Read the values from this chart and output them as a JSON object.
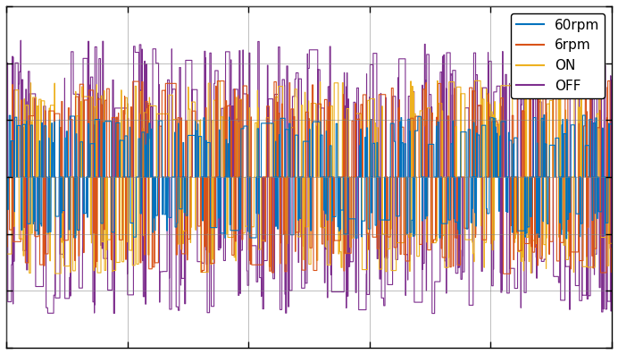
{
  "legend_labels": [
    "60rpm",
    "6rpm",
    "ON",
    "OFF"
  ],
  "colors": [
    "#0072BD",
    "#D95319",
    "#EDB120",
    "#7E2F8E"
  ],
  "n_samples": 10000,
  "ylim": [
    -1.5,
    1.5
  ],
  "xlim": [
    0,
    10000
  ],
  "background_color": "#ffffff",
  "grid_color": "#808080",
  "seed": 12345,
  "figsize": [
    6.92,
    3.96
  ],
  "dpi": 100,
  "legend_loc": "upper right",
  "legend_fontsize": 11,
  "line_width": 0.8,
  "amplitude_60rpm": 0.55,
  "amplitude_6rpm": 0.85,
  "amplitude_ON": 0.85,
  "amplitude_OFF": 1.2,
  "density_60rpm": 0.12,
  "density_6rpm": 0.1,
  "density_ON": 0.15,
  "density_OFF": 0.45
}
